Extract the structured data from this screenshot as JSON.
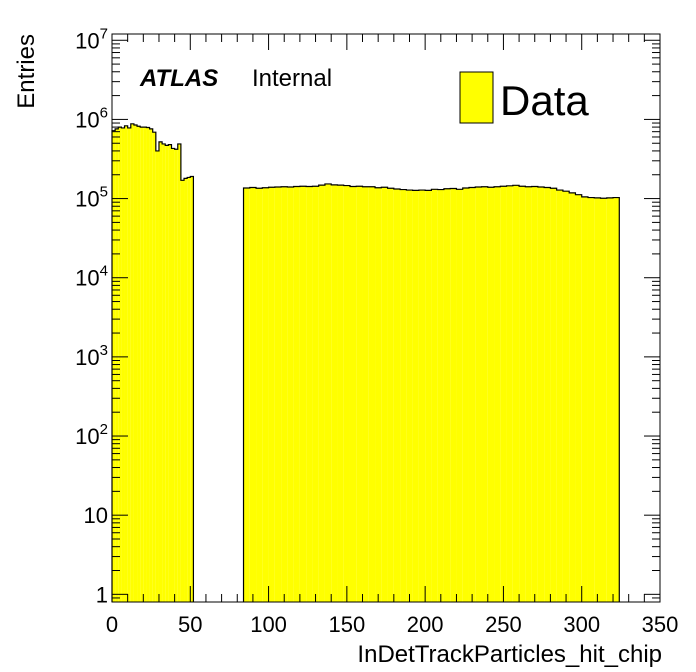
{
  "chart_data": {
    "type": "bar",
    "xlabel": "InDetTrackParticles_hit_chip",
    "ylabel": "Entries",
    "xlim": [
      0,
      350
    ],
    "ylim": [
      0.8,
      12000000
    ],
    "ylog": true,
    "x_ticks": [
      0,
      50,
      100,
      150,
      200,
      250,
      300,
      350
    ],
    "y_ticks": [
      {
        "value": 1,
        "base": "1",
        "exp": ""
      },
      {
        "value": 10,
        "base": "10",
        "exp": ""
      },
      {
        "value": 100,
        "base": "10",
        "exp": "2"
      },
      {
        "value": 1000,
        "base": "10",
        "exp": "3"
      },
      {
        "value": 10000,
        "base": "10",
        "exp": "4"
      },
      {
        "value": 100000,
        "base": "10",
        "exp": "5"
      },
      {
        "value": 1000000,
        "base": "10",
        "exp": "6"
      },
      {
        "value": 10000000,
        "base": "10",
        "exp": "7"
      }
    ],
    "fill_color": "#ffff00",
    "line_color": "#000000",
    "legend": {
      "label": "Data",
      "position": "top-right"
    },
    "annotation": {
      "bold": "ATLAS",
      "normal": "Internal"
    },
    "series": [
      {
        "segments": [
          {
            "start": 0,
            "bin_width": 2,
            "values": [
              720000,
              760000,
              800000,
              780000,
              830000,
              780000,
              880000,
              850000,
              820000,
              800000,
              800000,
              790000,
              760000,
              690000,
              400000,
              520000,
              490000,
              470000,
              480000,
              430000,
              420000,
              490000,
              170000,
              180000,
              185000,
              190000
            ]
          },
          {
            "start": 84,
            "bin_width": 4,
            "values": [
              136000,
              138000,
              135000,
              137000,
              139000,
              140000,
              141000,
              140000,
              142000,
              143000,
              142000,
              143000,
              148000,
              153000,
              149000,
              148000,
              146000,
              142000,
              143000,
              141000,
              141000,
              137000,
              139000,
              135000,
              132000,
              130000,
              128000,
              127000,
              128000,
              127000,
              131000,
              130000,
              133000,
              134000,
              131000,
              136000,
              138000,
              140000,
              141000,
              139000,
              141000,
              143000,
              145000,
              147000,
              143000,
              141000,
              142000,
              140000,
              138000,
              135000,
              128000,
              124000,
              118000,
              112000,
              105000,
              103000,
              102000,
              101000,
              102000,
              103000
            ]
          }
        ]
      }
    ]
  }
}
